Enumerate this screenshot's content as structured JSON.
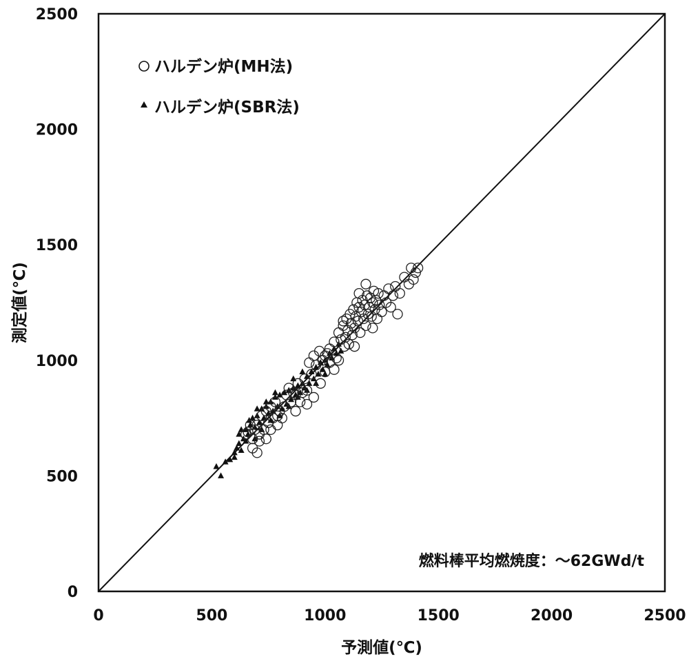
{
  "chart_data": {
    "type": "scatter",
    "xlabel": "予測値(℃)",
    "ylabel": "測定値(℃)",
    "xlim": [
      0,
      2500
    ],
    "ylim": [
      0,
      2500
    ],
    "x_ticks": [
      "0",
      "500",
      "1000",
      "1500",
      "2000",
      "2500"
    ],
    "y_ticks": [
      "0",
      "500",
      "1000",
      "1500",
      "2000",
      "2500"
    ],
    "grid": false,
    "legend_position": "top-left",
    "reference_line": {
      "from": [
        0,
        0
      ],
      "to": [
        2500,
        2500
      ]
    },
    "annotation": "燃料棒平均燃焼度：～62GWd/t",
    "series": [
      {
        "name": "ハルデン炉(MH法)",
        "marker": "open-circle",
        "color": "#222222",
        "points": [
          [
            1000,
            1020
          ],
          [
            1020,
            1050
          ],
          [
            1040,
            1080
          ],
          [
            1050,
            1010
          ],
          [
            1060,
            1120
          ],
          [
            1070,
            1090
          ],
          [
            1080,
            1150
          ],
          [
            1085,
            1060
          ],
          [
            1090,
            1100
          ],
          [
            1095,
            1180
          ],
          [
            1100,
            1130
          ],
          [
            1105,
            1070
          ],
          [
            1110,
            1200
          ],
          [
            1115,
            1160
          ],
          [
            1120,
            1110
          ],
          [
            1125,
            1220
          ],
          [
            1130,
            1140
          ],
          [
            1135,
            1190
          ],
          [
            1140,
            1250
          ],
          [
            1145,
            1170
          ],
          [
            1150,
            1230
          ],
          [
            1155,
            1120
          ],
          [
            1160,
            1210
          ],
          [
            1165,
            1260
          ],
          [
            1170,
            1180
          ],
          [
            1175,
            1240
          ],
          [
            1180,
            1150
          ],
          [
            1185,
            1280
          ],
          [
            1190,
            1200
          ],
          [
            1195,
            1230
          ],
          [
            1200,
            1270
          ],
          [
            1205,
            1190
          ],
          [
            1210,
            1250
          ],
          [
            1215,
            1300
          ],
          [
            1220,
            1220
          ],
          [
            1225,
            1260
          ],
          [
            1230,
            1180
          ],
          [
            1235,
            1290
          ],
          [
            1240,
            1240
          ],
          [
            1250,
            1210
          ],
          [
            1260,
            1280
          ],
          [
            1270,
            1250
          ],
          [
            1280,
            1310
          ],
          [
            1290,
            1230
          ],
          [
            1300,
            1280
          ],
          [
            1310,
            1320
          ],
          [
            1320,
            1200
          ],
          [
            1330,
            1290
          ],
          [
            1350,
            1360
          ],
          [
            1370,
            1330
          ],
          [
            1380,
            1400
          ],
          [
            1390,
            1350
          ],
          [
            1400,
            1380
          ],
          [
            1410,
            1400
          ],
          [
            1180,
            1330
          ],
          [
            1080,
            1170
          ],
          [
            1130,
            1060
          ],
          [
            1060,
            1000
          ],
          [
            1150,
            1290
          ],
          [
            1210,
            1140
          ],
          [
            950,
            1020
          ],
          [
            960,
            980
          ],
          [
            975,
            1040
          ],
          [
            930,
            990
          ],
          [
            990,
            1000
          ],
          [
            1010,
            1030
          ],
          [
            880,
            900
          ],
          [
            900,
            860
          ],
          [
            910,
            920
          ],
          [
            920,
            870
          ],
          [
            940,
            940
          ],
          [
            870,
            850
          ],
          [
            840,
            880
          ],
          [
            850,
            820
          ],
          [
            860,
            860
          ],
          [
            820,
            800
          ],
          [
            830,
            850
          ],
          [
            800,
            780
          ],
          [
            780,
            820
          ],
          [
            790,
            760
          ],
          [
            760,
            800
          ],
          [
            770,
            750
          ],
          [
            740,
            780
          ],
          [
            750,
            730
          ],
          [
            720,
            760
          ],
          [
            730,
            700
          ],
          [
            700,
            720
          ],
          [
            710,
            680
          ],
          [
            690,
            700
          ],
          [
            680,
            660
          ],
          [
            670,
            720
          ],
          [
            660,
            690
          ],
          [
            650,
            680
          ],
          [
            680,
            620
          ],
          [
            700,
            600
          ],
          [
            710,
            650
          ],
          [
            740,
            660
          ],
          [
            760,
            700
          ],
          [
            790,
            720
          ],
          [
            810,
            750
          ],
          [
            870,
            780
          ],
          [
            890,
            820
          ],
          [
            920,
            810
          ],
          [
            950,
            840
          ],
          [
            980,
            900
          ],
          [
            1000,
            950
          ],
          [
            1020,
            990
          ],
          [
            1040,
            960
          ]
        ]
      },
      {
        "name": "ハルデン炉(SBR法)",
        "marker": "filled-triangle",
        "color": "#111111",
        "points": [
          [
            520,
            540
          ],
          [
            540,
            500
          ],
          [
            560,
            560
          ],
          [
            580,
            570
          ],
          [
            600,
            600
          ],
          [
            610,
            620
          ],
          [
            620,
            640
          ],
          [
            630,
            610
          ],
          [
            640,
            660
          ],
          [
            650,
            700
          ],
          [
            660,
            680
          ],
          [
            665,
            740
          ],
          [
            670,
            720
          ],
          [
            680,
            750
          ],
          [
            690,
            710
          ],
          [
            700,
            760
          ],
          [
            710,
            730
          ],
          [
            720,
            790
          ],
          [
            730,
            750
          ],
          [
            740,
            800
          ],
          [
            750,
            770
          ],
          [
            760,
            820
          ],
          [
            770,
            780
          ],
          [
            780,
            840
          ],
          [
            790,
            800
          ],
          [
            800,
            850
          ],
          [
            810,
            790
          ],
          [
            820,
            860
          ],
          [
            830,
            810
          ],
          [
            840,
            870
          ],
          [
            850,
            830
          ],
          [
            860,
            880
          ],
          [
            870,
            850
          ],
          [
            880,
            890
          ],
          [
            890,
            860
          ],
          [
            900,
            900
          ],
          [
            910,
            880
          ],
          [
            920,
            930
          ],
          [
            930,
            900
          ],
          [
            940,
            950
          ],
          [
            950,
            920
          ],
          [
            960,
            970
          ],
          [
            970,
            940
          ],
          [
            980,
            990
          ],
          [
            990,
            960
          ],
          [
            1000,
            1000
          ],
          [
            1010,
            980
          ],
          [
            1020,
            1030
          ],
          [
            1030,
            1010
          ],
          [
            1040,
            1050
          ],
          [
            1050,
            1030
          ],
          [
            1060,
            1070
          ],
          [
            1070,
            1040
          ],
          [
            690,
            660
          ],
          [
            720,
            700
          ],
          [
            760,
            740
          ],
          [
            800,
            760
          ],
          [
            840,
            800
          ],
          [
            880,
            840
          ],
          [
            920,
            870
          ],
          [
            960,
            900
          ],
          [
            1000,
            940
          ],
          [
            700,
            790
          ],
          [
            740,
            820
          ],
          [
            780,
            860
          ],
          [
            650,
            650
          ],
          [
            630,
            700
          ],
          [
            600,
            580
          ],
          [
            620,
            680
          ],
          [
            860,
            920
          ],
          [
            900,
            950
          ]
        ]
      }
    ]
  }
}
